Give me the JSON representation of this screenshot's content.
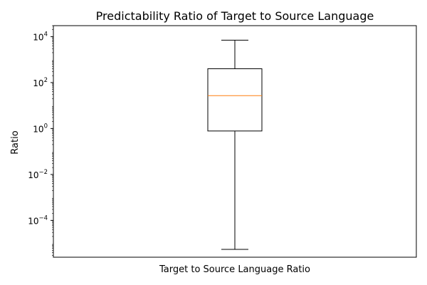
{
  "chart_data": {
    "type": "box",
    "title": "Predictability Ratio of Target to Source Language",
    "xlabel": "Target to Source Language Ratio",
    "ylabel": "Ratio",
    "yscale": "log",
    "ylim": [
      2.5e-06,
      30000
    ],
    "grid": false,
    "legend": "none",
    "yticks": [
      {
        "value": 0.0001,
        "base": "10",
        "exp": "−4"
      },
      {
        "value": 0.01,
        "base": "10",
        "exp": "−2"
      },
      {
        "value": 1,
        "base": "10",
        "exp": "0"
      },
      {
        "value": 100,
        "base": "10",
        "exp": "2"
      },
      {
        "value": 10000,
        "base": "10",
        "exp": "4"
      }
    ],
    "boxes": [
      {
        "whisker_low": 5.5e-06,
        "q1": 0.78,
        "median": 27,
        "q3": 400,
        "whisker_high": 7000
      }
    ],
    "colors": {
      "box": "#000000",
      "median": "#ff7f0e",
      "axes": "#000000"
    }
  }
}
